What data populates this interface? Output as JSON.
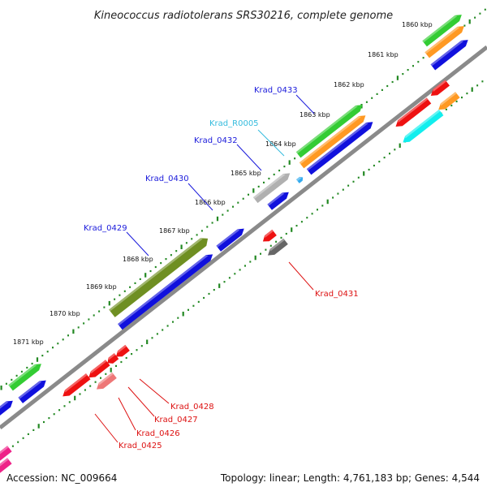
{
  "title": "Kineococcus radiotolerans SRS30216, complete genome",
  "accession_label": "Accession: NC_009664",
  "topology_label": "Topology: linear; Length: 4,761,183 bp; Genes: 4,544",
  "kbp_ticks": [
    "1860 kbp",
    "1861 kbp",
    "1862 kbp",
    "1863 kbp",
    "1864 kbp",
    "1865 kbp",
    "1866 kbp",
    "1867 kbp",
    "1868 kbp",
    "1869 kbp",
    "1870 kbp",
    "1871 kbp"
  ],
  "gene_labels": [
    {
      "text": "Krad_0433",
      "color": "#1a1adb"
    },
    {
      "text": "Krad_R0005",
      "color": "#33bbdd"
    },
    {
      "text": "Krad_0432",
      "color": "#1a1adb"
    },
    {
      "text": "Krad_0430",
      "color": "#1a1adb"
    },
    {
      "text": "Krad_0429",
      "color": "#1a1adb"
    },
    {
      "text": "Krad_0431",
      "color": "#dd1111"
    },
    {
      "text": "Krad_0428",
      "color": "#dd1111"
    },
    {
      "text": "Krad_0427",
      "color": "#dd1111"
    },
    {
      "text": "Krad_0426",
      "color": "#dd1111"
    },
    {
      "text": "Krad_0425",
      "color": "#dd1111"
    }
  ],
  "colors": {
    "backbone": "#8a8a8a",
    "tick_dots": "#228822",
    "gene_blue": "#1010dd",
    "gene_green": "#33cc33",
    "gene_orange": "#ff9922",
    "gene_olive": "#6f8f22",
    "gene_gray": "#b0b0b0",
    "gene_red": "#ee1111",
    "gene_cyan": "#11eeee",
    "gene_pink": "#ee7777",
    "gene_magenta": "#ee2288",
    "gene_darkgray": "#666666"
  }
}
